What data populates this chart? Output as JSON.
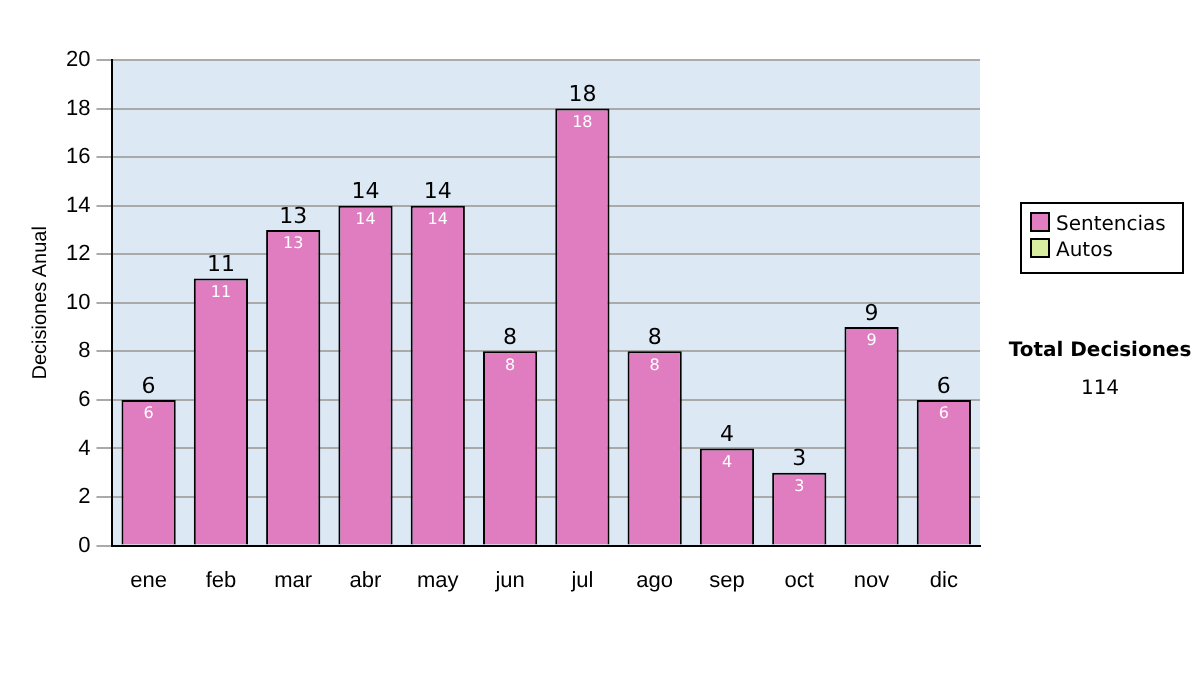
{
  "chart_data": {
    "type": "bar",
    "ylabel": "Decisiones Anual",
    "categories": [
      "ene",
      "feb",
      "mar",
      "abr",
      "may",
      "jun",
      "jul",
      "ago",
      "sep",
      "oct",
      "nov",
      "dic"
    ],
    "series": [
      {
        "name": "Sentencias",
        "color": "#e07cc0",
        "values": [
          6,
          11,
          13,
          14,
          14,
          8,
          18,
          8,
          4,
          3,
          9,
          6
        ]
      },
      {
        "name": "Autos",
        "color": "#d9eda0",
        "values": [
          null,
          null,
          null,
          null,
          null,
          null,
          null,
          null,
          null,
          null,
          null,
          null
        ]
      }
    ],
    "stacked": true,
    "totals": [
      "6",
      "11",
      "13",
      "14",
      "14",
      "8",
      "18",
      "8",
      "4",
      "3",
      "9",
      "6"
    ],
    "data_labels": true,
    "ylim": [
      0,
      20
    ],
    "yticks": [
      0,
      2,
      4,
      6,
      8,
      10,
      12,
      14,
      16,
      18,
      20
    ],
    "grid": "y",
    "legend": "right",
    "annotations": [
      "Total Decisiones",
      "114"
    ]
  }
}
